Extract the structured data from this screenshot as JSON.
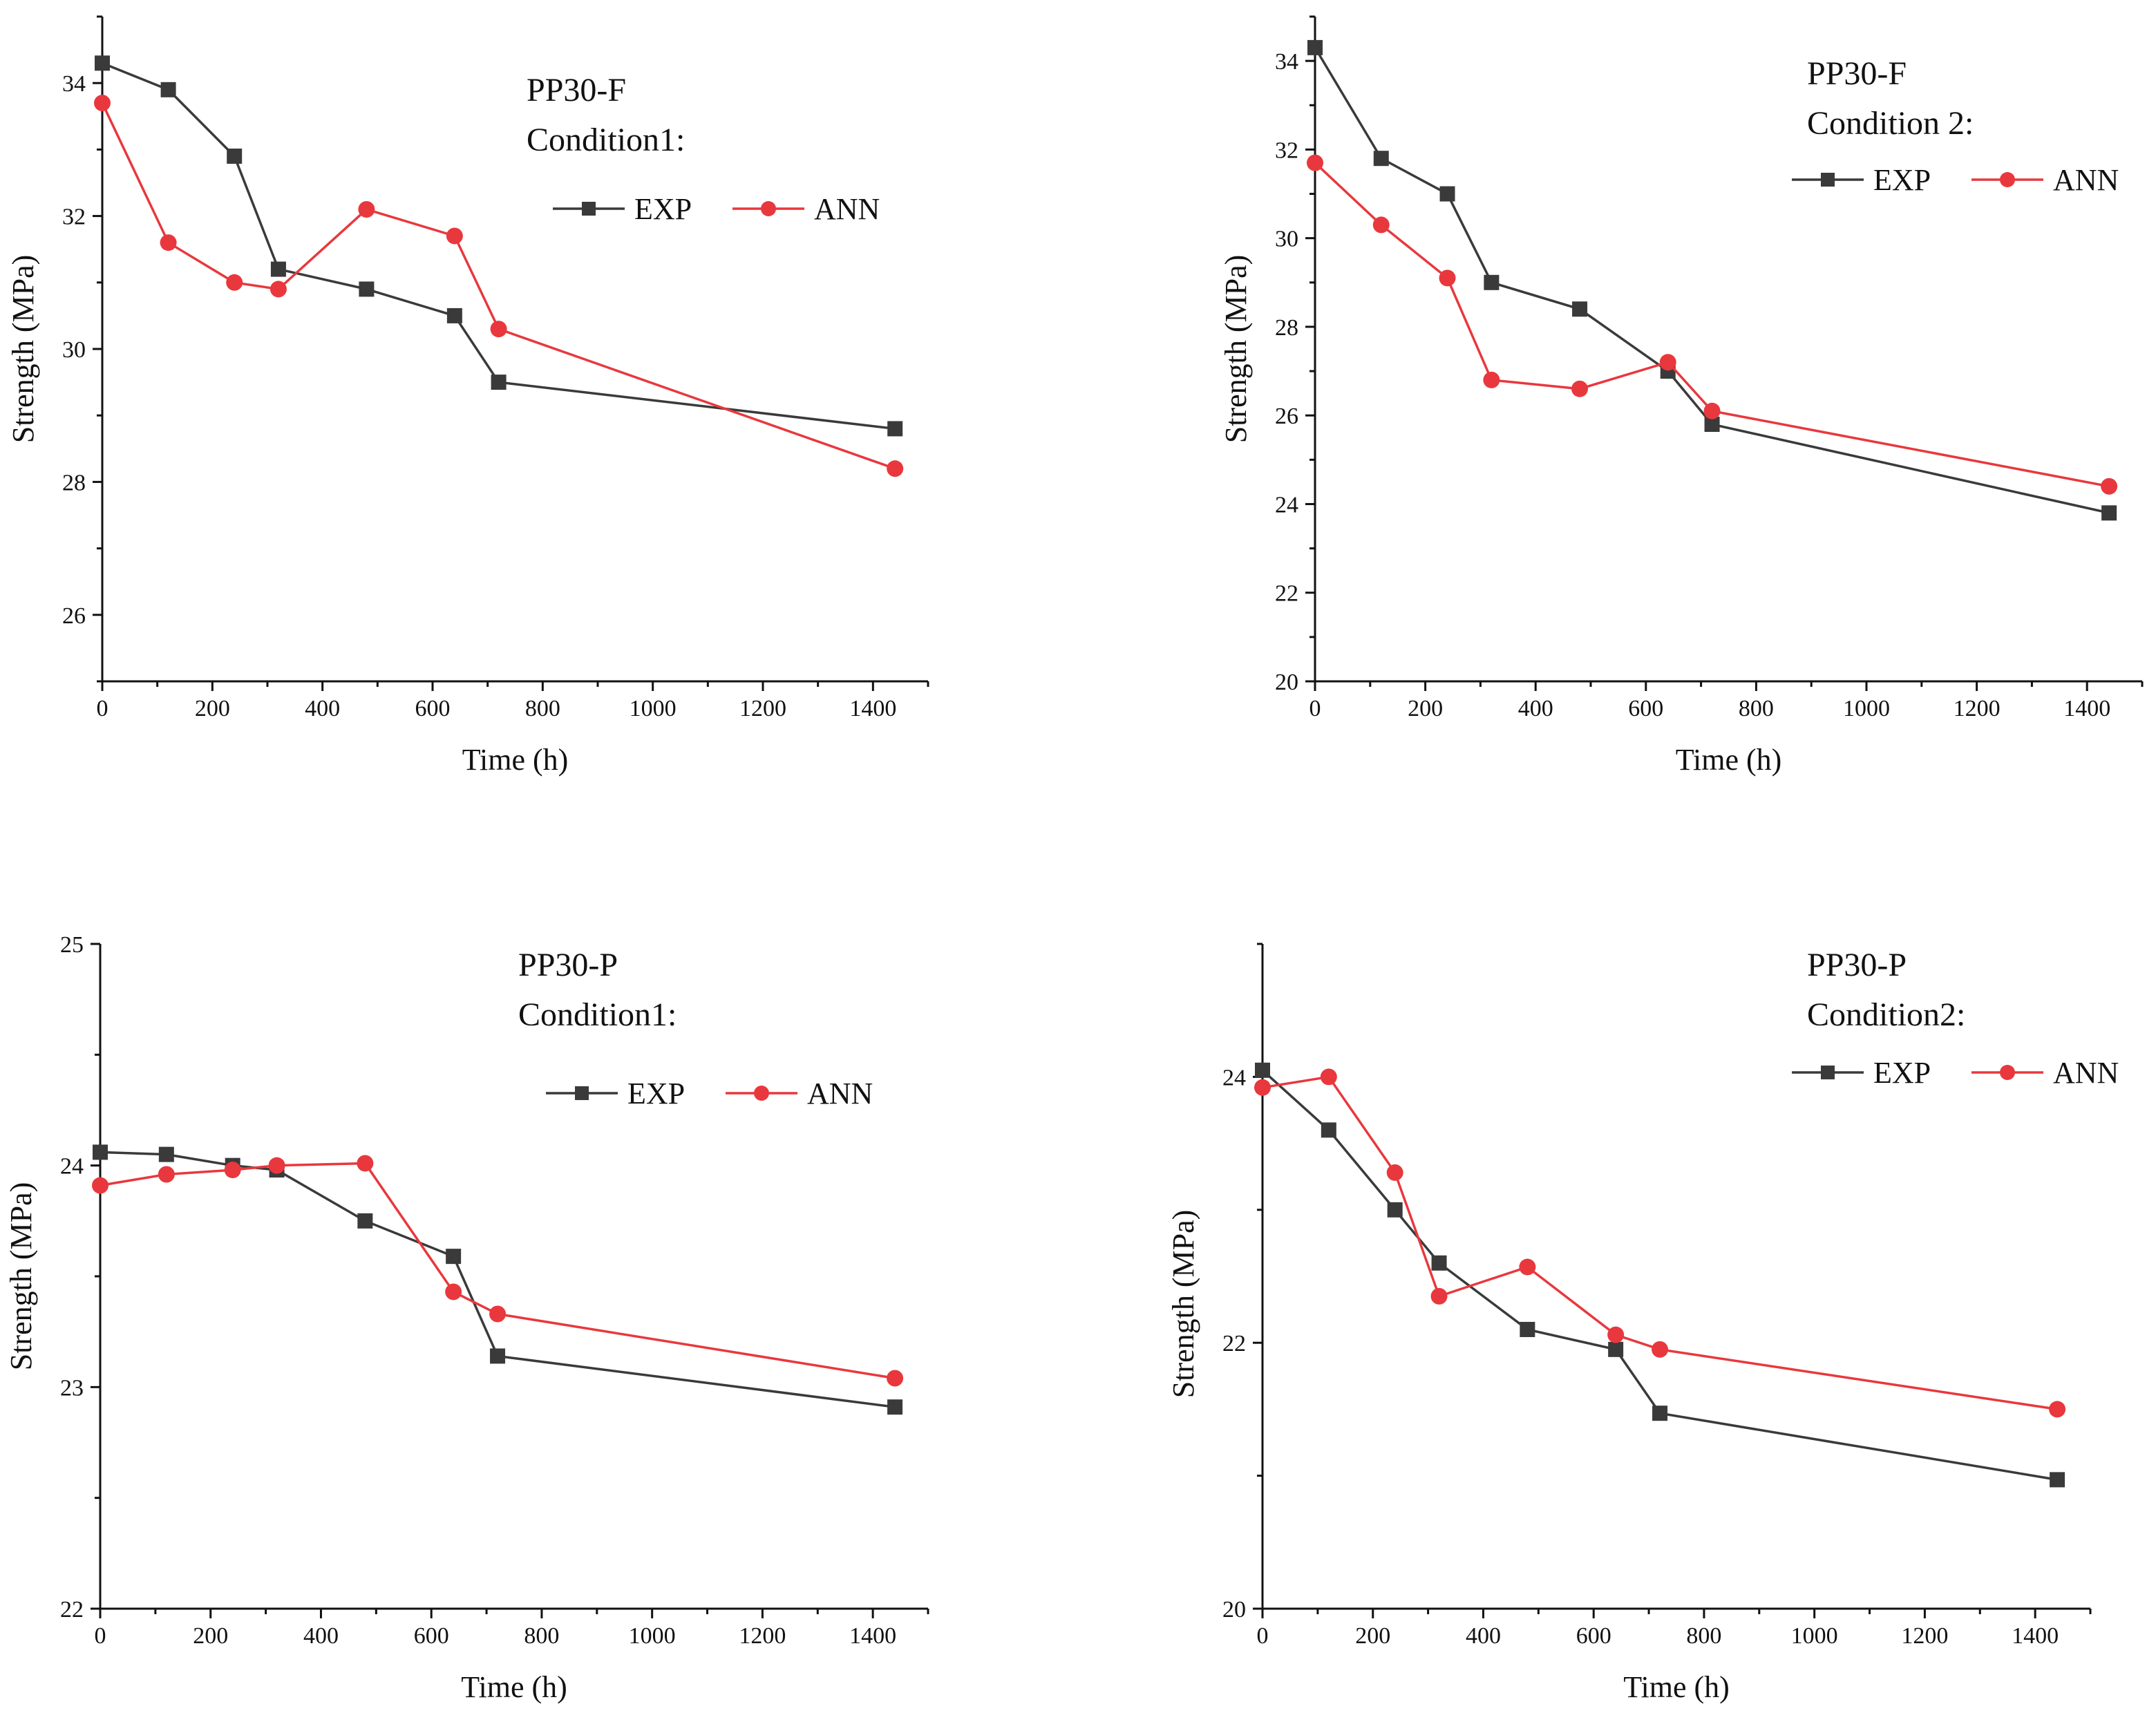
{
  "colors": {
    "exp": "#3a3a3a",
    "ann": "#e8383d",
    "axis": "#111111"
  },
  "chart_data": [
    {
      "type": "line",
      "title_lines": [
        "PP30-F",
        "Condition1:"
      ],
      "xlabel": "Time (h)",
      "ylabel": "Strength (MPa)",
      "xlim": [
        0,
        1500
      ],
      "ylim": [
        25,
        35
      ],
      "xticks": [
        0,
        200,
        400,
        600,
        800,
        1000,
        1200,
        1400
      ],
      "yticks": [
        26,
        28,
        30,
        32,
        34
      ],
      "legend": "top-right",
      "series": [
        {
          "name": "EXP",
          "marker": "square",
          "x": [
            0,
            120,
            240,
            320,
            480,
            640,
            720,
            1440
          ],
          "y": [
            34.3,
            33.9,
            32.9,
            31.2,
            30.9,
            30.5,
            29.5,
            28.8
          ]
        },
        {
          "name": "ANN",
          "marker": "circle",
          "x": [
            0,
            120,
            240,
            320,
            480,
            640,
            720,
            1440
          ],
          "y": [
            33.7,
            31.6,
            31.0,
            30.9,
            32.1,
            31.7,
            30.3,
            28.2
          ]
        }
      ]
    },
    {
      "type": "line",
      "title_lines": [
        "PP30-F",
        "Condition 2:"
      ],
      "xlabel": "Time (h)",
      "ylabel": "Strength (MPa)",
      "xlim": [
        0,
        1500
      ],
      "ylim": [
        20,
        35
      ],
      "xticks": [
        0,
        200,
        400,
        600,
        800,
        1000,
        1200,
        1400
      ],
      "yticks": [
        20,
        22,
        24,
        26,
        28,
        30,
        32,
        34
      ],
      "legend": "top-right",
      "series": [
        {
          "name": "EXP",
          "marker": "square",
          "x": [
            0,
            120,
            240,
            320,
            480,
            640,
            720,
            1440
          ],
          "y": [
            34.3,
            31.8,
            31.0,
            29.0,
            28.4,
            27.0,
            25.8,
            23.8
          ]
        },
        {
          "name": "ANN",
          "marker": "circle",
          "x": [
            0,
            120,
            240,
            320,
            480,
            640,
            720,
            1440
          ],
          "y": [
            31.7,
            30.3,
            29.1,
            26.8,
            26.6,
            27.2,
            26.1,
            24.4
          ]
        }
      ]
    },
    {
      "type": "line",
      "title_lines": [
        "PP30-P",
        "Condition1:"
      ],
      "xlabel": "Time (h)",
      "ylabel": "Strength (MPa)",
      "xlim": [
        0,
        1500
      ],
      "ylim": [
        22,
        25
      ],
      "xticks": [
        0,
        200,
        400,
        600,
        800,
        1000,
        1200,
        1400
      ],
      "yticks": [
        22,
        23,
        24,
        25
      ],
      "legend": "top-right",
      "series": [
        {
          "name": "EXP",
          "marker": "square",
          "x": [
            0,
            120,
            240,
            320,
            480,
            640,
            720,
            1440
          ],
          "y": [
            24.06,
            24.05,
            24.0,
            23.98,
            23.75,
            23.59,
            23.14,
            22.91
          ]
        },
        {
          "name": "ANN",
          "marker": "circle",
          "x": [
            0,
            120,
            240,
            320,
            480,
            640,
            720,
            1440
          ],
          "y": [
            23.91,
            23.96,
            23.98,
            24.0,
            24.01,
            23.43,
            23.33,
            23.04
          ]
        }
      ]
    },
    {
      "type": "line",
      "title_lines": [
        "PP30-P",
        "Condition2:"
      ],
      "xlabel": "Time (h)",
      "ylabel": "Strength (MPa)",
      "xlim": [
        0,
        1500
      ],
      "ylim": [
        20,
        25
      ],
      "xticks": [
        0,
        200,
        400,
        600,
        800,
        1000,
        1200,
        1400
      ],
      "yticks": [
        20,
        22,
        24
      ],
      "legend": "top-right",
      "series": [
        {
          "name": "EXP",
          "marker": "square",
          "x": [
            0,
            120,
            240,
            320,
            480,
            640,
            720,
            1440
          ],
          "y": [
            24.05,
            23.6,
            23.0,
            22.6,
            22.1,
            21.95,
            21.47,
            20.97
          ]
        },
        {
          "name": "ANN",
          "marker": "circle",
          "x": [
            0,
            120,
            240,
            320,
            480,
            640,
            720,
            1440
          ],
          "y": [
            23.92,
            24.0,
            23.28,
            22.35,
            22.57,
            22.06,
            21.95,
            21.5
          ]
        }
      ]
    }
  ]
}
